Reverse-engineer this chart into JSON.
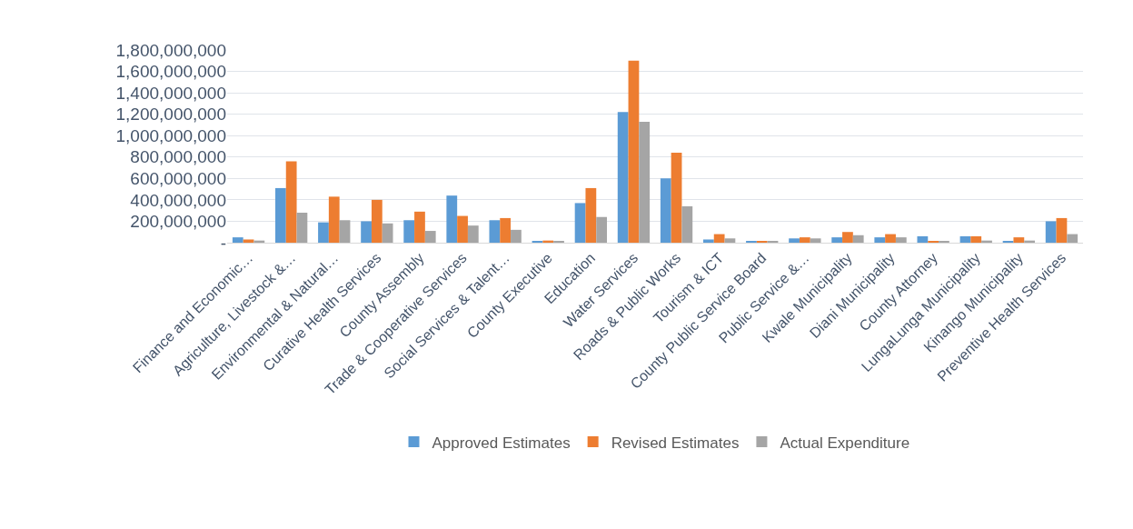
{
  "chart_data": {
    "type": "bar",
    "categories": [
      "Finance and Economic…",
      "Agriculture, Livestock &…",
      "Environmental & Natural…",
      "Curative Health Services",
      "County Assembly",
      "Trade & Cooperative Services",
      "Social Services & Talent…",
      "County Executive",
      "Education",
      "Water Services",
      "Roads & Public Works",
      "Tourism & ICT",
      "County Public Service Board",
      "Public Service &…",
      "Kwale Municipality",
      "Diani Municipality",
      "County Attorney",
      "LungaLunga Municipality",
      "Kinango Municipality",
      "Preventive Health Services"
    ],
    "series": [
      {
        "name": "Approved Estimates",
        "color": "#5b9bd5",
        "values": [
          50000000,
          510000000,
          190000000,
          200000000,
          210000000,
          440000000,
          210000000,
          10000000,
          370000000,
          1220000000,
          600000000,
          30000000,
          10000000,
          40000000,
          50000000,
          50000000,
          60000000,
          60000000,
          10000000,
          200000000
        ]
      },
      {
        "name": "Revised Estimates",
        "color": "#ed7d31",
        "values": [
          30000000,
          760000000,
          430000000,
          400000000,
          290000000,
          250000000,
          230000000,
          20000000,
          510000000,
          1700000000,
          840000000,
          80000000,
          10000000,
          50000000,
          100000000,
          80000000,
          10000000,
          60000000,
          50000000,
          230000000
        ]
      },
      {
        "name": "Actual Expenditure",
        "color": "#a5a5a5",
        "values": [
          20000000,
          280000000,
          210000000,
          180000000,
          110000000,
          160000000,
          120000000,
          10000000,
          240000000,
          1130000000,
          340000000,
          40000000,
          10000000,
          40000000,
          70000000,
          50000000,
          10000000,
          20000000,
          20000000,
          80000000
        ]
      }
    ],
    "ylim": [
      0,
      1800000000
    ],
    "yticks": [
      {
        "value": 0,
        "label": "-"
      },
      {
        "value": 200000000,
        "label": "200,000,000"
      },
      {
        "value": 400000000,
        "label": "400,000,000"
      },
      {
        "value": 600000000,
        "label": "600,000,000"
      },
      {
        "value": 800000000,
        "label": "800,000,000"
      },
      {
        "value": 1000000000,
        "label": "1,000,000,000"
      },
      {
        "value": 1200000000,
        "label": "1,200,000,000"
      },
      {
        "value": 1400000000,
        "label": "1,400,000,000"
      },
      {
        "value": 1600000000,
        "label": "1,600,000,000"
      },
      {
        "value": 1800000000,
        "label": "1,800,000,000"
      }
    ],
    "grid": "y",
    "legend": "bottom"
  }
}
